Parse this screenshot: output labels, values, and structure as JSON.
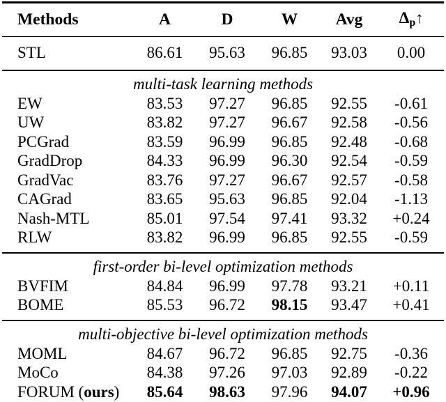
{
  "table": {
    "header": {
      "methods": "Methods",
      "col_a": "A",
      "col_d": "D",
      "col_w": "W",
      "col_avg": "Avg",
      "delta_symbol": "Δ",
      "delta_subscript": "p",
      "delta_arrow": "↑"
    },
    "sections": [
      {
        "label": "",
        "rows": [
          {
            "method": "STL",
            "values": [
              "86.61",
              "95.63",
              "96.85",
              "93.03",
              "0.00"
            ]
          }
        ]
      },
      {
        "label": "multi-task learning methods",
        "rows": [
          {
            "method": "EW",
            "values": [
              "83.53",
              "97.27",
              "96.85",
              "92.55",
              "-0.61"
            ]
          },
          {
            "method": "UW",
            "values": [
              "83.82",
              "97.27",
              "96.67",
              "92.58",
              "-0.56"
            ]
          },
          {
            "method": "PCGrad",
            "values": [
              "83.59",
              "96.99",
              "96.85",
              "92.48",
              "-0.68"
            ]
          },
          {
            "method": "GradDrop",
            "values": [
              "84.33",
              "96.99",
              "96.30",
              "92.54",
              "-0.59"
            ]
          },
          {
            "method": "GradVac",
            "values": [
              "83.76",
              "97.27",
              "96.67",
              "92.57",
              "-0.58"
            ]
          },
          {
            "method": "CAGrad",
            "values": [
              "83.65",
              "95.63",
              "96.85",
              "92.04",
              "-1.13"
            ]
          },
          {
            "method": "Nash-MTL",
            "values": [
              "85.01",
              "97.54",
              "97.41",
              "93.32",
              "+0.24"
            ]
          },
          {
            "method": "RLW",
            "values": [
              "83.82",
              "96.99",
              "96.85",
              "92.55",
              "-0.59"
            ]
          }
        ]
      },
      {
        "label": "first-order bi-level optimization methods",
        "rows": [
          {
            "method": "BVFIM",
            "values": [
              "84.84",
              "96.99",
              "97.78",
              "93.21",
              "+0.11"
            ]
          },
          {
            "method": "BOME",
            "values": [
              "85.53",
              "96.72",
              "98.15",
              "93.47",
              "+0.41"
            ]
          }
        ]
      },
      {
        "label": "multi-objective bi-level optimization methods",
        "rows": [
          {
            "method": "MOML",
            "values": [
              "84.67",
              "96.72",
              "96.85",
              "92.75",
              "-0.36"
            ]
          },
          {
            "method": "MoCo",
            "values": [
              "84.38",
              "97.26",
              "97.03",
              "92.89",
              "-0.22"
            ]
          },
          {
            "method": "FORUM (ours)",
            "method_prefix": "FORUM (",
            "method_emph": "ours",
            "method_suffix": ")",
            "values": [
              "85.64",
              "98.63",
              "97.96",
              "94.07",
              "+0.96"
            ]
          }
        ]
      }
    ],
    "colors": {
      "text": "#000000",
      "background": "#ffffff",
      "rule": "#000000"
    }
  }
}
